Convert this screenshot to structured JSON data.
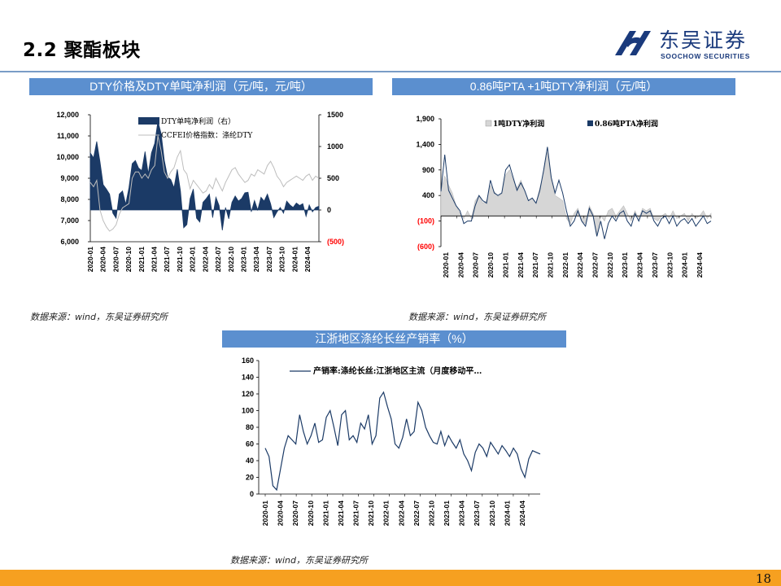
{
  "header": {
    "title": "2.2 聚酯板块",
    "logo_cn": "东吴证券",
    "logo_en": "SOOCHOW SECURITIES"
  },
  "panels": {
    "p1_title": "DTY价格及DTY单吨净利润（元/吨，元/吨）",
    "p2_title": "0.86吨PTA +1吨DTY净利润（元/吨）",
    "p3_title": "江浙地区涤纶长丝产销率（%）"
  },
  "sources": {
    "s1": "数据来源：wind，东吴证券研究所",
    "s2": "数据来源：wind，东吴证券研究所",
    "s3": "数据来源：wind，东吴证券研究所"
  },
  "footer": {
    "page_number": "18"
  },
  "colors": {
    "navy": "#1b3a66",
    "gray_line": "#bdbdbd",
    "gray_fill": "#d6d6d6",
    "accent_bar": "#5b8fcf",
    "footer": "#f6a020",
    "negative_label": "#ff0000"
  },
  "chart_data": [
    {
      "id": "dty",
      "type": "area",
      "x_ticks": [
        "2020-01",
        "2020-04",
        "2020-07",
        "2020-10",
        "2021-01",
        "2021-04",
        "2021-07",
        "2021-10",
        "2022-01",
        "2022-04",
        "2022-07",
        "2022-10",
        "2023-01",
        "2023-04",
        "2023-07",
        "2023-10",
        "2024-01",
        "2024-04"
      ],
      "y_left": {
        "ticks": [
          "6,000",
          "7,000",
          "8,000",
          "9,000",
          "10,000",
          "11,000",
          "12,000"
        ],
        "min": 6000,
        "max": 12000
      },
      "y_right": {
        "ticks": [
          "(500)",
          "0",
          "500",
          "1000",
          "1500"
        ],
        "min": -500,
        "max": 1500,
        "negative_red": true
      },
      "legend": [
        "DTY单吨净利润（右）",
        "CCFEI价格指数：涤纶DTY"
      ],
      "series": [
        {
          "name": "DTY单吨净利润（右）",
          "axis": "right",
          "style": "area",
          "values": [
            900,
            820,
            1080,
            760,
            400,
            330,
            250,
            -50,
            -130,
            250,
            300,
            90,
            350,
            730,
            780,
            660,
            620,
            920,
            570,
            900,
            1050,
            1400,
            1200,
            780,
            520,
            480,
            350,
            640,
            300,
            -280,
            -230,
            180,
            330,
            -130,
            -190,
            120,
            180,
            250,
            -120,
            200,
            70,
            -320,
            40,
            -140,
            120,
            220,
            140,
            180,
            270,
            280,
            -30,
            150,
            0,
            200,
            140,
            250,
            100,
            -120,
            -30,
            40,
            -50,
            140,
            80,
            40,
            110,
            70,
            100,
            -100,
            80,
            -30,
            40,
            60
          ]
        },
        {
          "name": "CCFEI价格指数：涤纶DTY",
          "axis": "left",
          "style": "line",
          "values": [
            8800,
            8600,
            8900,
            7500,
            7000,
            6700,
            6500,
            6600,
            6800,
            7300,
            7600,
            7700,
            7800,
            9000,
            9300,
            9300,
            9000,
            9200,
            9000,
            9400,
            9600,
            11000,
            10300,
            9300,
            9000,
            9300,
            9500,
            10000,
            10300,
            9400,
            9200,
            8500,
            8900,
            8700,
            8500,
            8300,
            8400,
            8700,
            8500,
            9000,
            8700,
            8400,
            8800,
            9100,
            9400,
            9500,
            9200,
            9000,
            8800,
            8900,
            9200,
            9100,
            9400,
            9300,
            9200,
            9600,
            9800,
            9500,
            9100,
            8900,
            8600,
            8800,
            8900,
            9000,
            9100,
            9000,
            8900,
            9100,
            9200,
            8900,
            9100,
            9000
          ]
        }
      ]
    },
    {
      "id": "pta_dty",
      "type": "area",
      "x_ticks": [
        "2020-01",
        "2020-04",
        "2020-07",
        "2020-10",
        "2021-01",
        "2021-04",
        "2021-07",
        "2021-10",
        "2022-01",
        "2022-04",
        "2022-07",
        "2022-10",
        "2023-01",
        "2023-04",
        "2023-07",
        "2023-10",
        "2024-01",
        "2024-04"
      ],
      "y": {
        "ticks": [
          "(600)",
          "(100)",
          "400",
          "900",
          "1,400",
          "1,900"
        ],
        "min": -600,
        "max": 1900,
        "negative_red": true
      },
      "legend": [
        "1吨DTY净利润",
        "0.86吨PTA净利润"
      ],
      "series": [
        {
          "name": "1吨DTY净利润",
          "style": "area",
          "values": [
            500,
            780,
            600,
            450,
            200,
            50,
            -50,
            100,
            -50,
            300,
            400,
            250,
            300,
            600,
            480,
            380,
            430,
            800,
            900,
            700,
            550,
            700,
            500,
            300,
            350,
            250,
            550,
            850,
            1250,
            700,
            400,
            350,
            300,
            -50,
            -150,
            50,
            150,
            -100,
            -150,
            200,
            50,
            -350,
            0,
            -100,
            100,
            150,
            0,
            100,
            200,
            50,
            -100,
            100,
            -50,
            150,
            100,
            150,
            -50,
            -100,
            0,
            50,
            -50,
            100,
            -50,
            0,
            50,
            -100,
            50,
            -50,
            0,
            100,
            -50,
            50
          ]
        },
        {
          "name": "0.86吨PTA净利润",
          "style": "line",
          "values": [
            480,
            1200,
            500,
            350,
            200,
            100,
            -150,
            -100,
            -100,
            200,
            400,
            300,
            250,
            700,
            450,
            400,
            450,
            900,
            1000,
            750,
            500,
            650,
            500,
            300,
            350,
            250,
            500,
            900,
            1350,
            750,
            450,
            700,
            450,
            100,
            -200,
            -100,
            100,
            -100,
            -200,
            150,
            0,
            -400,
            -100,
            -450,
            -150,
            0,
            -100,
            50,
            100,
            -100,
            -200,
            50,
            -100,
            100,
            50,
            100,
            -100,
            -200,
            -50,
            0,
            -150,
            0,
            -200,
            -100,
            -50,
            -150,
            -50,
            -200,
            -100,
            0,
            -150,
            -100
          ]
        }
      ]
    },
    {
      "id": "sales_rate",
      "type": "line",
      "x_ticks": [
        "2020-01",
        "2020-04",
        "2020-07",
        "2020-10",
        "2021-01",
        "2021-04",
        "2021-07",
        "2021-10",
        "2022-01",
        "2022-04",
        "2022-07",
        "2022-10",
        "2023-01",
        "2023-04",
        "2023-07",
        "2023-10",
        "2024-01",
        "2024-04"
      ],
      "y": {
        "ticks": [
          "0",
          "20",
          "40",
          "60",
          "80",
          "100",
          "120",
          "140",
          "160"
        ],
        "min": 0,
        "max": 160
      },
      "legend": [
        "产销率:涤纶长丝:江浙地区主流（月度移动平…"
      ],
      "series": [
        {
          "name": "产销率:涤纶长丝:江浙地区主流（月度移动平…",
          "style": "line",
          "values": [
            55,
            45,
            10,
            5,
            30,
            55,
            70,
            65,
            60,
            95,
            75,
            60,
            70,
            85,
            62,
            65,
            92,
            100,
            80,
            58,
            95,
            100,
            65,
            70,
            62,
            85,
            78,
            95,
            60,
            70,
            115,
            122,
            105,
            90,
            60,
            55,
            68,
            90,
            70,
            75,
            110,
            100,
            80,
            70,
            62,
            60,
            75,
            58,
            70,
            62,
            55,
            65,
            48,
            40,
            28,
            50,
            60,
            55,
            45,
            62,
            55,
            48,
            58,
            52,
            45,
            55,
            48,
            30,
            20,
            42,
            52,
            50,
            48
          ]
        }
      ]
    }
  ]
}
